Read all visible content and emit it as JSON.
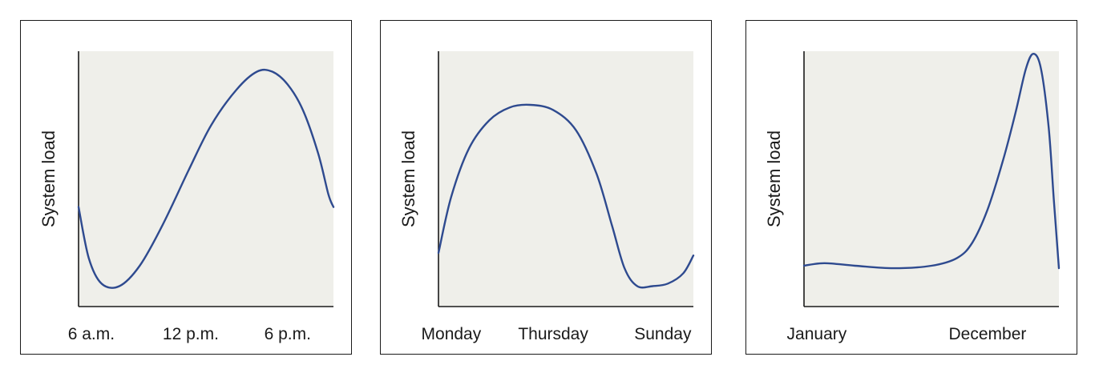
{
  "colors": {
    "line": "#2e4a8f",
    "plot_bg": "#efefea",
    "axis": "#1a1a1a"
  },
  "chart_data": [
    {
      "type": "line",
      "ylabel": "System load",
      "xlabel": "",
      "x_ticks": [
        "6 a.m.",
        "12 p.m.",
        "6 p.m."
      ],
      "x_tick_positions": [
        0.05,
        0.44,
        0.82
      ],
      "ylim": [
        0,
        1
      ],
      "xlim": [
        0,
        1
      ],
      "grid": false,
      "series": [
        {
          "x": [
            0,
            0.04,
            0.09,
            0.16,
            0.24,
            0.33,
            0.43,
            0.52,
            0.62,
            0.7,
            0.76,
            0.82,
            0.88,
            0.94,
            0.98,
            1.0
          ],
          "y": [
            0.39,
            0.19,
            0.09,
            0.08,
            0.16,
            0.32,
            0.53,
            0.71,
            0.85,
            0.92,
            0.92,
            0.87,
            0.77,
            0.6,
            0.44,
            0.39
          ]
        }
      ]
    },
    {
      "type": "line",
      "ylabel": "System load",
      "xlabel": "",
      "x_ticks": [
        "Monday",
        "Thursday",
        "Sunday"
      ],
      "x_tick_positions": [
        0.05,
        0.45,
        0.88
      ],
      "ylim": [
        0,
        1
      ],
      "xlim": [
        0,
        1
      ],
      "grid": false,
      "series": [
        {
          "x": [
            0,
            0.05,
            0.12,
            0.2,
            0.28,
            0.36,
            0.45,
            0.54,
            0.62,
            0.68,
            0.73,
            0.78,
            0.84,
            0.9,
            0.96,
            1.0
          ],
          "y": [
            0.21,
            0.43,
            0.62,
            0.73,
            0.78,
            0.79,
            0.77,
            0.69,
            0.52,
            0.32,
            0.15,
            0.08,
            0.08,
            0.09,
            0.13,
            0.2
          ]
        }
      ]
    },
    {
      "type": "line",
      "ylabel": "System load",
      "xlabel": "",
      "x_ticks": [
        "January",
        "December"
      ],
      "x_tick_positions": [
        0.05,
        0.72
      ],
      "ylim": [
        0,
        1
      ],
      "xlim": [
        0,
        1
      ],
      "grid": false,
      "series": [
        {
          "x": [
            0,
            0.08,
            0.2,
            0.35,
            0.5,
            0.6,
            0.66,
            0.72,
            0.78,
            0.83,
            0.87,
            0.9,
            0.93,
            0.96,
            0.98,
            1.0
          ],
          "y": [
            0.16,
            0.17,
            0.16,
            0.15,
            0.16,
            0.19,
            0.25,
            0.38,
            0.57,
            0.76,
            0.93,
            0.99,
            0.93,
            0.7,
            0.42,
            0.15
          ]
        }
      ]
    }
  ]
}
